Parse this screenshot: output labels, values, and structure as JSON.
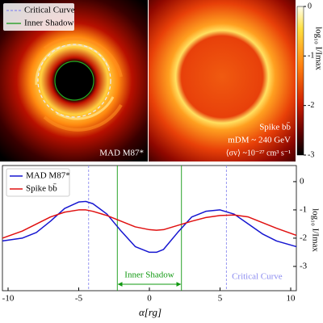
{
  "images": {
    "left_label": "MAD M87*",
    "legend": [
      "Critical Curve",
      "Inner Shadow"
    ],
    "right_labels": [
      "Spike bb̄",
      "mDM ~ 240 GeV",
      "⟨σv⟩ ~10⁻²⁷ cm³ s⁻¹"
    ],
    "colorbar": {
      "label": "log₁₀ I/Imax",
      "lim": [
        -3,
        0
      ],
      "ticks": [
        0,
        -1,
        -2,
        -3
      ]
    }
  },
  "chart_data": {
    "type": "line",
    "xlabel": "α[rg]",
    "ylabel": "log₁₀ I/Imax",
    "x": [
      -10.4,
      -9,
      -8,
      -7,
      -6,
      -5,
      -4.5,
      -4,
      -3,
      -2,
      -1,
      0,
      0.5,
      1,
      2,
      3,
      4,
      5,
      6,
      7,
      8,
      9,
      10.4
    ],
    "series": [
      {
        "name": "MAD M87*",
        "color": "#1515d0",
        "values": [
          -2.1,
          -2.0,
          -1.8,
          -1.4,
          -0.95,
          -0.72,
          -0.7,
          -0.78,
          -1.15,
          -1.75,
          -2.3,
          -2.5,
          -2.5,
          -2.4,
          -1.8,
          -1.25,
          -1.05,
          -1.0,
          -1.15,
          -1.5,
          -1.85,
          -2.1,
          -2.3
        ]
      },
      {
        "name": "Spike bb̄",
        "color": "#e01010",
        "values": [
          -2.0,
          -1.75,
          -1.5,
          -1.25,
          -1.08,
          -1.0,
          -1.0,
          -1.05,
          -1.2,
          -1.4,
          -1.6,
          -1.7,
          -1.72,
          -1.7,
          -1.55,
          -1.4,
          -1.27,
          -1.2,
          -1.18,
          -1.25,
          -1.45,
          -1.65,
          -1.9
        ]
      }
    ],
    "xlim": [
      -10.4,
      10.4
    ],
    "ylim": [
      -3.86,
      0.57
    ],
    "xticks": [
      -10,
      -5,
      0,
      5,
      10
    ],
    "yticks": [
      0,
      -1,
      -2,
      -3
    ],
    "critical_curve": {
      "label": "Critical Curve",
      "color": "#8c8cf0",
      "x": [
        -4.3,
        5.45
      ]
    },
    "inner_shadow": {
      "label": "Inner Shadow",
      "color": "#119911",
      "x": [
        -2.27,
        2.27
      ]
    }
  }
}
